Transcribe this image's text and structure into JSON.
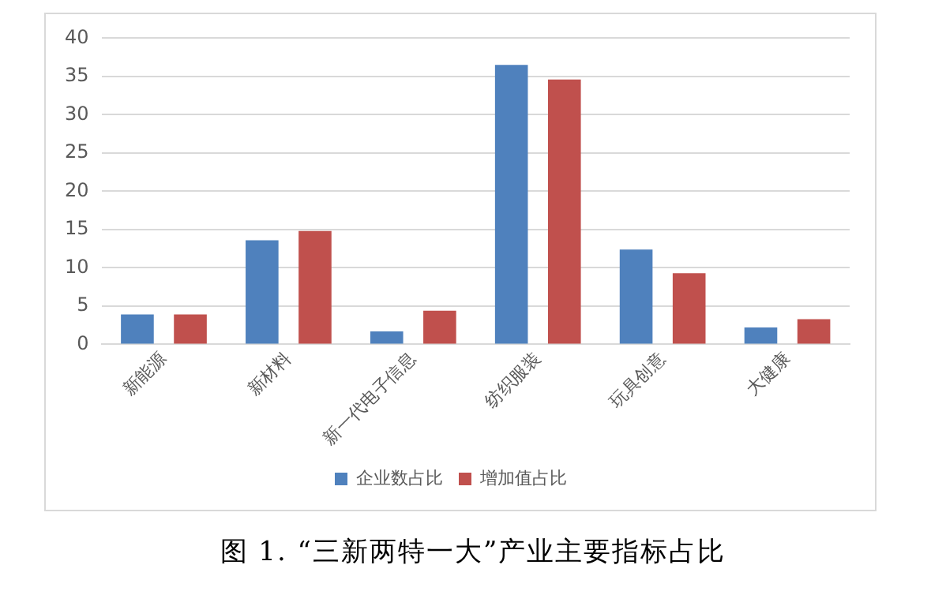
{
  "chart_data": {
    "type": "bar",
    "title": "图 1. “三新两特一大”产业主要指标占比",
    "categories": [
      "新能源",
      "新材料",
      "新一代电子信息",
      "纺织服装",
      "玩具创意",
      "大健康"
    ],
    "series": [
      {
        "name": "企业数占比",
        "color": "#4f81bd",
        "values": [
          3.9,
          13.6,
          1.7,
          36.5,
          12.4,
          2.2
        ]
      },
      {
        "name": "增加值占比",
        "color": "#c0504d",
        "values": [
          3.9,
          14.8,
          4.4,
          34.6,
          9.3,
          3.3
        ]
      }
    ],
    "ylim": [
      0,
      40
    ],
    "yticks": [
      0,
      5,
      10,
      15,
      20,
      25,
      30,
      35,
      40
    ],
    "grid": "y",
    "legend": "bottom"
  }
}
